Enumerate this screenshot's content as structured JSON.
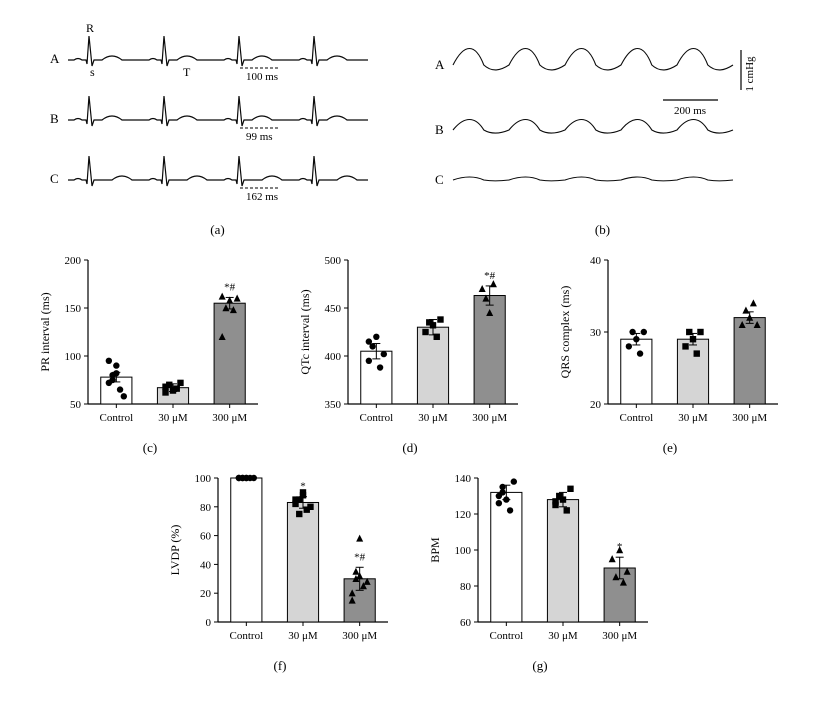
{
  "panel_a": {
    "label": "(a)",
    "rows": [
      "A",
      "B",
      "C"
    ],
    "row_labels_font": 13,
    "ann_R": "R",
    "ann_T": "T",
    "ann_s": "s",
    "time_labels": [
      "100 ms",
      "99 ms",
      "162 ms"
    ],
    "stroke": "#0a0a0a",
    "label_color": "#0a0a0a"
  },
  "panel_b": {
    "label": "(b)",
    "rows": [
      "A",
      "B",
      "C"
    ],
    "scale_x": "200 ms",
    "scale_y": "1 cmHg",
    "stroke": "#0a0a0a"
  },
  "charts": {
    "c": {
      "label": "(c)",
      "ylabel": "PR interval (ms)",
      "ylim": [
        50,
        200
      ],
      "ytick_step": 50,
      "categories": [
        "Control",
        "30 μM",
        "300 μM"
      ],
      "values": [
        78,
        67,
        155
      ],
      "errors": [
        5,
        4,
        6
      ],
      "points": [
        [
          72,
          80,
          90,
          65,
          58,
          95,
          75,
          82
        ],
        [
          62,
          70,
          64,
          66,
          72,
          68
        ],
        [
          162,
          150,
          158,
          148,
          160,
          120
        ]
      ],
      "markers": [
        "circle",
        "square",
        "triangle"
      ],
      "sig": [
        "",
        "",
        "*#"
      ],
      "bar_colors": [
        "#ffffff",
        "#d5d5d5",
        "#8f8f8f"
      ]
    },
    "d": {
      "label": "(d)",
      "ylabel": "QTc interval (ms)",
      "ylim": [
        350,
        500
      ],
      "ytick_step": 50,
      "categories": [
        "Control",
        "30 μM",
        "300 μM"
      ],
      "values": [
        405,
        430,
        463
      ],
      "errors": [
        8,
        8,
        10
      ],
      "points": [
        [
          395,
          410,
          420,
          388,
          402,
          415
        ],
        [
          425,
          435,
          432,
          420,
          438
        ],
        [
          470,
          460,
          445,
          475
        ]
      ],
      "markers": [
        "circle",
        "square",
        "triangle"
      ],
      "sig": [
        "",
        "",
        "*#"
      ],
      "bar_colors": [
        "#ffffff",
        "#d5d5d5",
        "#8f8f8f"
      ]
    },
    "e": {
      "label": "(e)",
      "ylabel": "QRS complex (ms)",
      "ylim": [
        20,
        40
      ],
      "ytick_step": 10,
      "categories": [
        "Control",
        "30 μM",
        "300 μM"
      ],
      "values": [
        29,
        29,
        32
      ],
      "errors": [
        0.8,
        0.8,
        0.8
      ],
      "points": [
        [
          28,
          30,
          29,
          27,
          30
        ],
        [
          28,
          30,
          29,
          27,
          30
        ],
        [
          31,
          33,
          32,
          34,
          31
        ]
      ],
      "markers": [
        "circle",
        "square",
        "triangle"
      ],
      "sig": [
        "",
        "",
        ""
      ],
      "bar_colors": [
        "#ffffff",
        "#d5d5d5",
        "#8f8f8f"
      ]
    },
    "f": {
      "label": "(f)",
      "ylabel": "LVDP (%)",
      "ylim": [
        0,
        100
      ],
      "ytick_step": 20,
      "categories": [
        "Control",
        "30 μM",
        "300 μM"
      ],
      "values": [
        100,
        83,
        30
      ],
      "errors": [
        0,
        4,
        8
      ],
      "points": [
        [
          100,
          100,
          100,
          100,
          100,
          100,
          100,
          100
        ],
        [
          82,
          85,
          90,
          78,
          80,
          85,
          75,
          88
        ],
        [
          20,
          35,
          58,
          25,
          28,
          15,
          30,
          32
        ]
      ],
      "markers": [
        "circle",
        "square",
        "triangle"
      ],
      "sig": [
        "",
        "*",
        "*#"
      ],
      "bar_colors": [
        "#ffffff",
        "#d5d5d5",
        "#8f8f8f"
      ]
    },
    "g": {
      "label": "(g)",
      "ylabel": "BPM",
      "ylim": [
        60,
        140
      ],
      "ytick_step": 20,
      "categories": [
        "Control",
        "30 μM",
        "300 μM"
      ],
      "values": [
        132,
        128,
        90
      ],
      "errors": [
        4,
        4,
        6
      ],
      "points": [
        [
          130,
          135,
          128,
          122,
          138,
          126,
          132
        ],
        [
          125,
          130,
          128,
          122,
          134,
          127
        ],
        [
          95,
          85,
          100,
          82,
          88
        ]
      ],
      "markers": [
        "circle",
        "square",
        "triangle"
      ],
      "sig": [
        "",
        "",
        "*"
      ],
      "bar_colors": [
        "#ffffff",
        "#d5d5d5",
        "#8f8f8f"
      ]
    },
    "common": {
      "axis_color": "#000000",
      "tick_font": 11,
      "label_font": 12,
      "marker_size": 3.2,
      "bar_width": 0.55,
      "sig_font": 11
    }
  }
}
